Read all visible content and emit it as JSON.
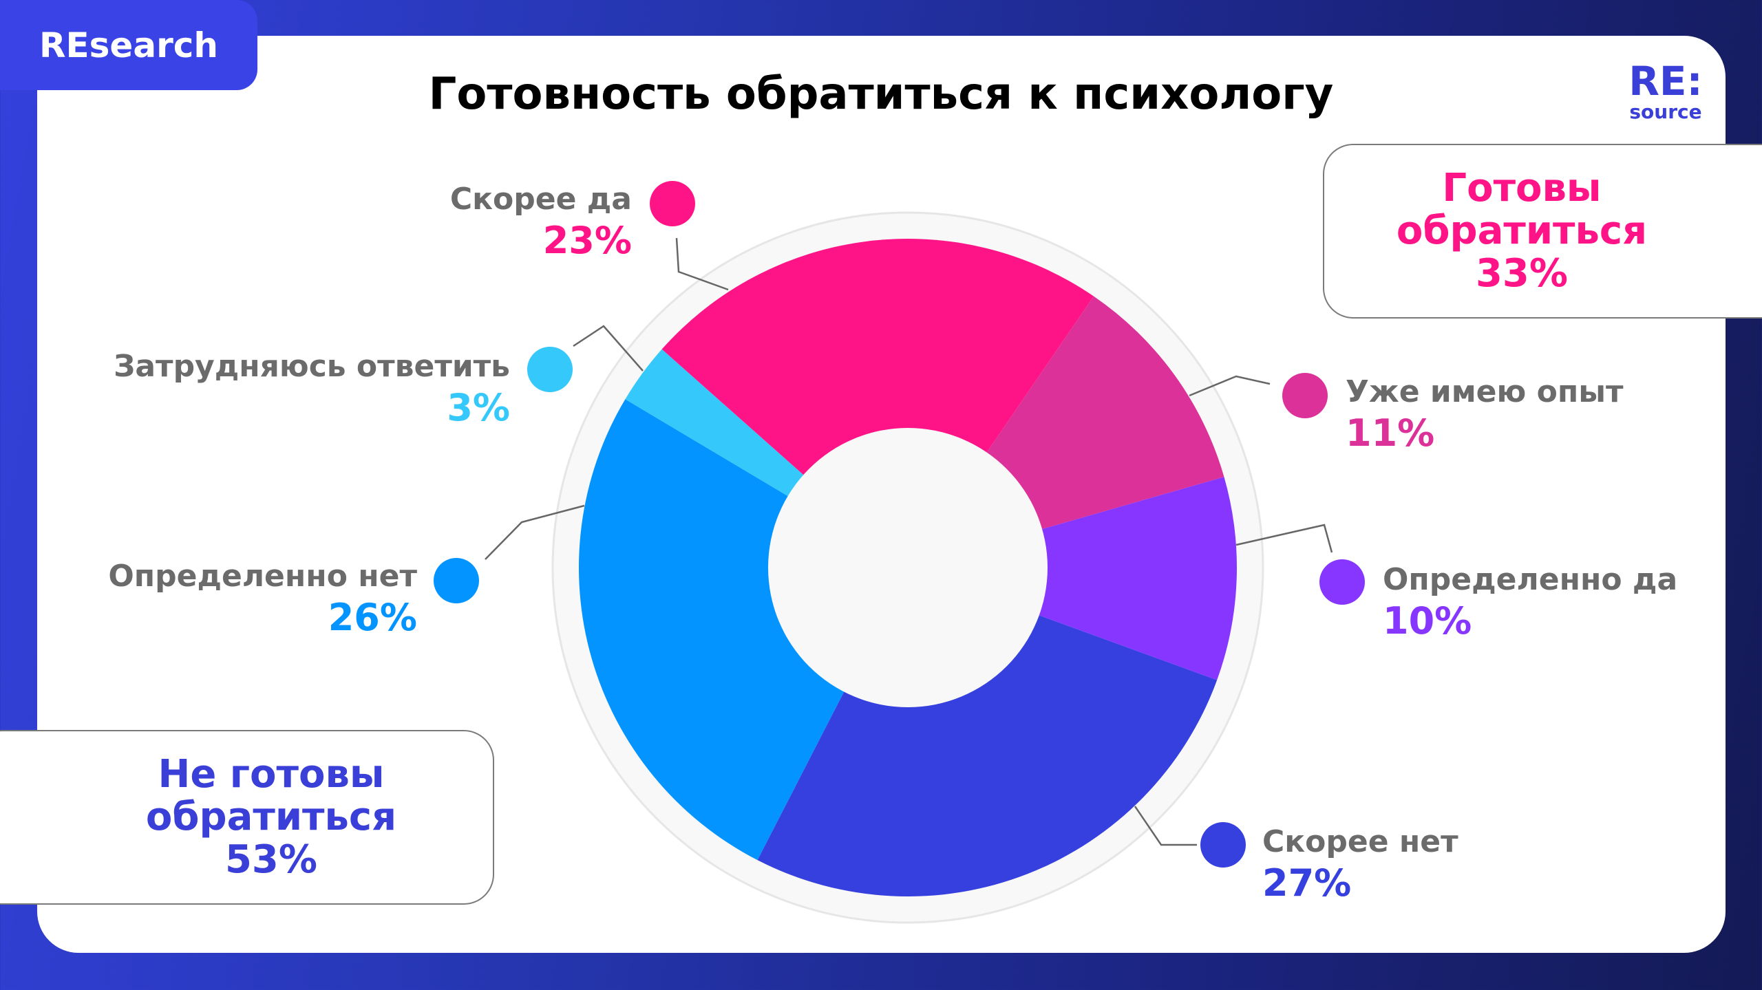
{
  "badge": "REsearch",
  "logo": {
    "top": "RE:",
    "bottom": "source"
  },
  "chart_data": {
    "type": "pie",
    "variant": "donut",
    "title": "Готовность обратиться к психологу",
    "slices": [
      {
        "label": "Скорее да",
        "value": 23,
        "display": "23%",
        "color": "#ff1488"
      },
      {
        "label": "Уже имею опыт",
        "value": 11,
        "display": "11%",
        "color": "#dc3199"
      },
      {
        "label": "Определенно да",
        "value": 10,
        "display": "10%",
        "color": "#8736ff"
      },
      {
        "label": "Скорее нет",
        "value": 27,
        "display": "27%",
        "color": "#3640de"
      },
      {
        "label": "Определенно нет",
        "value": 26,
        "display": "26%",
        "color": "#0394ff"
      },
      {
        "label": "Затрудняюсь ответить",
        "value": 3,
        "display": "3%",
        "color": "#35c8fa"
      }
    ],
    "start_angle_deg": -48.4,
    "direction": "clockwise"
  },
  "groups": {
    "ready": {
      "line1": "Готовы",
      "line2": "обратиться",
      "value": "33%",
      "color": "#ff1488"
    },
    "not_ready": {
      "line1": "Не готовы",
      "line2": "обратиться",
      "value": "53%",
      "color": "#3a3fd8"
    }
  }
}
